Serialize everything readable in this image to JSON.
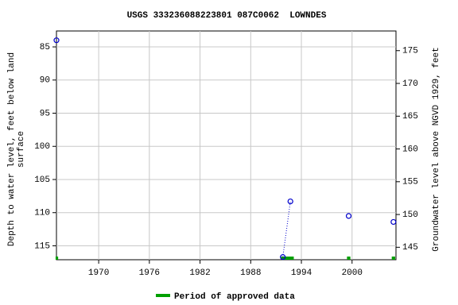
{
  "chart_data": {
    "type": "scatter",
    "title": "USGS 333236088223801 087C0062  LOWNDES",
    "ylabel": [
      "Depth to water level, feet below land",
      "surface"
    ],
    "y2label": "Groundwater level above NGVD 1929, feet",
    "xlim": [
      1965.0,
      2005.2
    ],
    "xticks": [
      1970,
      1976,
      1982,
      1988,
      1994,
      2000
    ],
    "ylim": [
      82.6,
      117.1
    ],
    "yticks": [
      85,
      90,
      95,
      100,
      105,
      110,
      115
    ],
    "y_inverted": true,
    "y2lim": [
      143.1,
      178.0
    ],
    "y2ticks": [
      145,
      150,
      155,
      160,
      165,
      170,
      175
    ],
    "grid": true,
    "series": [
      {
        "color": "#0000cc",
        "line_style": "dotted",
        "x": [
          1965.0,
          null,
          1991.8,
          1992.7,
          null,
          1999.6,
          null,
          2004.9
        ],
        "values": [
          84.0,
          null,
          116.7,
          108.3,
          null,
          110.5,
          null,
          111.4
        ]
      }
    ],
    "approved_periods": {
      "name": "Period of approved data",
      "color": "#00a000",
      "ranges": [
        [
          1964.9,
          1965.2
        ],
        [
          1991.6,
          1993.1
        ],
        [
          1999.4,
          1999.8
        ],
        [
          2004.7,
          2005.1
        ]
      ]
    }
  }
}
